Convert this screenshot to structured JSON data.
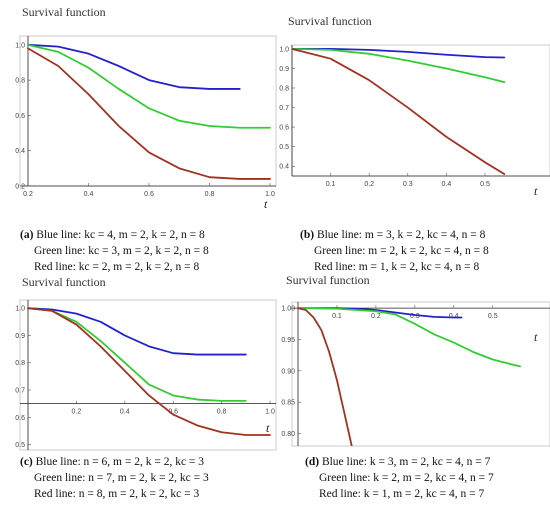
{
  "chart_data": [
    {
      "id": "a",
      "type": "line",
      "title": "Survival function",
      "xlabel": "t",
      "xlim": [
        0.2,
        1.0
      ],
      "ylim": [
        0.2,
        1.05
      ],
      "x_ticks": [
        "0.2",
        "0.4",
        "0.6",
        "0.8",
        "1.0"
      ],
      "y_ticks": [
        "0.2",
        "0.4",
        "0.6",
        "0.8",
        "1.0"
      ],
      "series": [
        {
          "color": "#2222cc",
          "x": [
            0.2,
            0.3,
            0.4,
            0.5,
            0.6,
            0.7,
            0.8,
            0.9
          ],
          "y": [
            1.0,
            0.99,
            0.95,
            0.88,
            0.8,
            0.76,
            0.75,
            0.75
          ]
        },
        {
          "color": "#33cc33",
          "x": [
            0.2,
            0.3,
            0.4,
            0.5,
            0.6,
            0.7,
            0.8,
            0.9,
            1.0
          ],
          "y": [
            1.0,
            0.96,
            0.87,
            0.75,
            0.64,
            0.57,
            0.54,
            0.53,
            0.53
          ]
        },
        {
          "color": "#a0321e",
          "x": [
            0.2,
            0.3,
            0.4,
            0.5,
            0.6,
            0.7,
            0.8,
            0.9,
            1.0
          ],
          "y": [
            0.98,
            0.88,
            0.72,
            0.54,
            0.39,
            0.3,
            0.25,
            0.24,
            0.24
          ]
        }
      ],
      "caption": {
        "label": "(a)",
        "lines": [
          "Blue line: kc = 4, m = 2, k = 2, n = 8",
          "Green line: kc = 3, m = 2, k = 2, n = 8",
          "Red line: kc = 2, m = 2, k = 2, n = 8"
        ]
      }
    },
    {
      "id": "b",
      "type": "line",
      "title": "Survival function",
      "xlabel": "t",
      "xlim": [
        0.0,
        0.57
      ],
      "ylim": [
        0.35,
        1.02
      ],
      "x_ticks": [
        "0.1",
        "0.2",
        "0.3",
        "0.4",
        "0.5"
      ],
      "y_ticks": [
        "0.4",
        "0.5",
        "0.6",
        "0.7",
        "0.8",
        "0.9",
        "1.0"
      ],
      "series": [
        {
          "color": "#2222cc",
          "x": [
            0.0,
            0.1,
            0.2,
            0.3,
            0.4,
            0.5,
            0.55
          ],
          "y": [
            1.0,
            1.0,
            0.995,
            0.985,
            0.97,
            0.958,
            0.956
          ]
        },
        {
          "color": "#33cc33",
          "x": [
            0.0,
            0.1,
            0.2,
            0.3,
            0.4,
            0.5,
            0.55
          ],
          "y": [
            1.0,
            0.995,
            0.975,
            0.94,
            0.9,
            0.855,
            0.83
          ]
        },
        {
          "color": "#a0321e",
          "x": [
            0.0,
            0.1,
            0.2,
            0.3,
            0.4,
            0.5,
            0.55
          ],
          "y": [
            1.0,
            0.95,
            0.84,
            0.7,
            0.55,
            0.42,
            0.36
          ]
        }
      ],
      "caption": {
        "label": "(b)",
        "lines": [
          "Blue line: m = 3, k = 2, kc = 4, n = 8",
          "Green line: m = 2, k = 2, kc = 4, n = 8",
          "Red line: m = 1, k = 2, kc = 4, n = 8"
        ]
      }
    },
    {
      "id": "c",
      "type": "line",
      "title": "Survival function",
      "xlabel": "t",
      "xlim": [
        0.0,
        1.0
      ],
      "ylim": [
        0.48,
        1.03
      ],
      "x_ticks": [
        "0.2",
        "0.4",
        "0.6",
        "0.8",
        "1.0"
      ],
      "y_ticks": [
        "0.5",
        "0.6",
        "0.7",
        "0.8",
        "0.9",
        "1.0"
      ],
      "series": [
        {
          "color": "#2222cc",
          "x": [
            0.0,
            0.1,
            0.2,
            0.3,
            0.4,
            0.5,
            0.6,
            0.7,
            0.8,
            0.9
          ],
          "y": [
            1.0,
            0.995,
            0.98,
            0.95,
            0.9,
            0.86,
            0.835,
            0.83,
            0.83,
            0.83
          ]
        },
        {
          "color": "#33cc33",
          "x": [
            0.0,
            0.1,
            0.2,
            0.3,
            0.4,
            0.5,
            0.6,
            0.7,
            0.8,
            0.9
          ],
          "y": [
            1.0,
            0.99,
            0.95,
            0.88,
            0.8,
            0.72,
            0.68,
            0.665,
            0.66,
            0.66
          ]
        },
        {
          "color": "#a0321e",
          "x": [
            0.0,
            0.1,
            0.2,
            0.3,
            0.4,
            0.5,
            0.6,
            0.7,
            0.8,
            0.9,
            1.0
          ],
          "y": [
            1.0,
            0.99,
            0.94,
            0.86,
            0.77,
            0.68,
            0.61,
            0.57,
            0.545,
            0.535,
            0.535
          ]
        }
      ],
      "caption": {
        "label": "(c)",
        "lines": [
          "Blue line: n = 6, m = 2, k = 2, kc = 3",
          "Green line: n = 7, m = 2, k = 2, kc = 3",
          "Red line: n = 8, m = 2, k = 2, kc = 3"
        ]
      }
    },
    {
      "id": "d",
      "type": "line",
      "title": "Survival function",
      "xlabel": "t",
      "xlim": [
        0.0,
        0.57
      ],
      "ylim": [
        0.78,
        1.005
      ],
      "x_ticks": [
        "0.1",
        "0.2",
        "0.3",
        "0.4",
        "0.5"
      ],
      "y_ticks": [
        "0.80",
        "0.85",
        "0.90",
        "0.95",
        "1.00"
      ],
      "series": [
        {
          "color": "#2222cc",
          "x": [
            0.0,
            0.1,
            0.15,
            0.2,
            0.25,
            0.3,
            0.35,
            0.4,
            0.42
          ],
          "y": [
            1.0,
            1.0,
            0.999,
            0.997,
            0.993,
            0.989,
            0.986,
            0.985,
            0.985
          ]
        },
        {
          "color": "#33cc33",
          "x": [
            0.0,
            0.1,
            0.2,
            0.25,
            0.3,
            0.35,
            0.4,
            0.45,
            0.5,
            0.55,
            0.57
          ],
          "y": [
            1.0,
            0.999,
            0.995,
            0.99,
            0.975,
            0.958,
            0.945,
            0.93,
            0.918,
            0.91,
            0.907
          ]
        },
        {
          "color": "#a0321e",
          "x": [
            0.0,
            0.02,
            0.04,
            0.06,
            0.08,
            0.1,
            0.12,
            0.138
          ],
          "y": [
            1.0,
            0.997,
            0.985,
            0.965,
            0.93,
            0.885,
            0.83,
            0.78
          ]
        }
      ],
      "caption": {
        "label": "(d)",
        "lines": [
          "Blue line: k = 3, m = 2, kc = 4, n = 7",
          "Green line: k = 2, m = 2, kc = 4, n = 7",
          "Red line: k = 1, m = 2, kc = 4, n = 7"
        ]
      }
    }
  ]
}
